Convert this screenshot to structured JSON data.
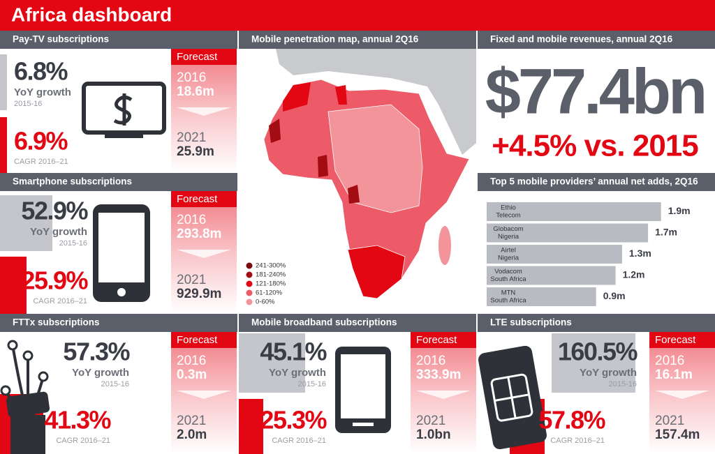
{
  "header": {
    "title": "Africa dashboard"
  },
  "panels": [
    {
      "title": "Pay-TV subscriptions",
      "growth": {
        "value": "6.8%",
        "label": "YoY growth",
        "period": "2015-16"
      },
      "cagr": {
        "value": "6.9%",
        "label": "CAGR 2016–21"
      },
      "forecast": {
        "label": "Forecast",
        "rows": [
          {
            "year": "2016",
            "value": "18.6m"
          },
          {
            "year": "2021",
            "value": "25.9m"
          }
        ]
      }
    },
    {
      "title": "Smartphone subscriptions",
      "growth": {
        "value": "52.9%",
        "label": "YoY growth",
        "period": "2015-16"
      },
      "cagr": {
        "value": "25.9%",
        "label": "CAGR 2016–21"
      },
      "forecast": {
        "label": "Forecast",
        "rows": [
          {
            "year": "2016",
            "value": "293.8m"
          },
          {
            "year": "2021",
            "value": "929.9m"
          }
        ]
      }
    },
    {
      "title": "FTTx subscriptions",
      "growth": {
        "value": "57.3%",
        "label": "YoY growth",
        "period": "2015-16"
      },
      "cagr": {
        "value": "41.3%",
        "label": "CAGR 2016–21"
      },
      "forecast": {
        "label": "Forecast",
        "rows": [
          {
            "year": "2016",
            "value": "0.3m"
          },
          {
            "year": "2021",
            "value": "2.0m"
          }
        ]
      }
    },
    {
      "title": "Mobile broadband subscriptions",
      "growth": {
        "value": "45.1%",
        "label": "YoY growth",
        "period": "2015-16"
      },
      "cagr": {
        "value": "25.3%",
        "label": "CAGR 2016–21"
      },
      "forecast": {
        "label": "Forecast",
        "rows": [
          {
            "year": "2016",
            "value": "333.9m"
          },
          {
            "year": "2021",
            "value": "1.0bn"
          }
        ]
      }
    },
    {
      "title": "LTE subscriptions",
      "growth": {
        "value": "160.5%",
        "label": "YoY growth",
        "period": "2015-16"
      },
      "cagr": {
        "value": "57.8%",
        "label": "CAGR 2016–21"
      },
      "forecast": {
        "label": "Forecast",
        "rows": [
          {
            "year": "2016",
            "value": "16.1m"
          },
          {
            "year": "2021",
            "value": "157.4m"
          }
        ]
      }
    }
  ],
  "map": {
    "title": "Mobile penetration map, annual 2Q16",
    "legend": [
      {
        "label": "241-300%",
        "color": "#7a0a0e"
      },
      {
        "label": "181-240%",
        "color": "#a30c12"
      },
      {
        "label": "121-180%",
        "color": "#e30613"
      },
      {
        "label": "61-120%",
        "color": "#ec5b67"
      },
      {
        "label": "0-60%",
        "color": "#f3949b"
      }
    ]
  },
  "revenue": {
    "title": "Fixed and mobile revenues, annual 2Q16",
    "amount": "$77.4bn",
    "change": "+4.5% vs. 2015"
  },
  "net_adds": {
    "title": "Top 5 mobile providers’ annual net adds, 2Q16",
    "providers": [
      [
        "Ethio",
        "Telecom"
      ],
      [
        "Globacom",
        "Nigeria"
      ],
      [
        "Airtel",
        "Nigeria"
      ],
      [
        "Vodacom",
        "South Africa"
      ],
      [
        "MTN",
        "South Africa"
      ]
    ],
    "values": [
      1.9,
      1.7,
      1.3,
      1.2,
      0.9
    ],
    "value_labels": [
      "1.9m",
      "1.7m",
      "1.3m",
      "1.2m",
      "0.9m"
    ],
    "color": "#b9bbc2"
  }
}
